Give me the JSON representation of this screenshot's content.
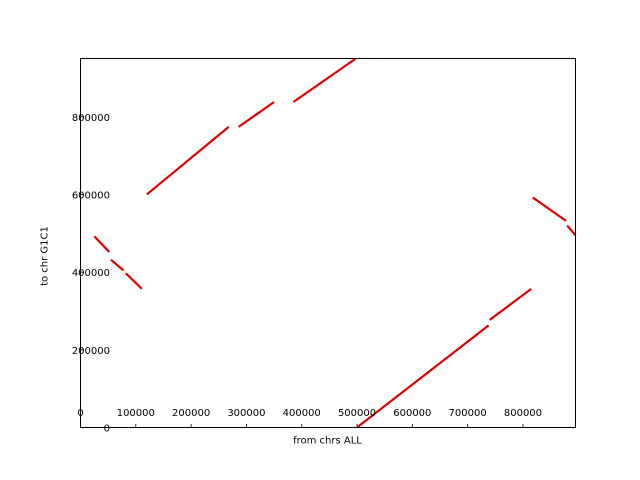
{
  "chart_data": {
    "type": "line",
    "title": "",
    "xlabel": "from chrs ALL",
    "ylabel": "to chr G1C1",
    "xlim": [
      0,
      895000
    ],
    "ylim": [
      0,
      950000
    ],
    "grid": false,
    "x_ticks": [
      0,
      100000,
      200000,
      300000,
      400000,
      500000,
      600000,
      700000,
      800000
    ],
    "x_tick_labels": [
      "0",
      "100000",
      "200000",
      "300000",
      "400000",
      "500000",
      "600000",
      "700000",
      "800000"
    ],
    "y_ticks": [
      0,
      200000,
      400000,
      600000,
      800000
    ],
    "y_tick_labels": [
      "0",
      "200000",
      "400000",
      "600000",
      "800000"
    ],
    "series_color": "#dd0000",
    "segments": [
      {
        "x": [
          25000,
          52000
        ],
        "y": [
          492000,
          452000
        ]
      },
      {
        "x": [
          55000,
          78000
        ],
        "y": [
          432000,
          404000
        ]
      },
      {
        "x": [
          82000,
          111000
        ],
        "y": [
          397000,
          357000
        ]
      },
      {
        "x": [
          120000,
          268000
        ],
        "y": [
          600000,
          774000
        ]
      },
      {
        "x": [
          286000,
          350000
        ],
        "y": [
          774000,
          838000
        ]
      },
      {
        "x": [
          385000,
          498000
        ],
        "y": [
          838000,
          950000
        ]
      },
      {
        "x": [
          500000,
          738000
        ],
        "y": [
          0,
          263000
        ]
      },
      {
        "x": [
          740000,
          815000
        ],
        "y": [
          277000,
          357000
        ]
      },
      {
        "x": [
          818000,
          878000
        ],
        "y": [
          592000,
          532000
        ]
      },
      {
        "x": [
          880000,
          895000
        ],
        "y": [
          520000,
          495000
        ]
      }
    ]
  }
}
